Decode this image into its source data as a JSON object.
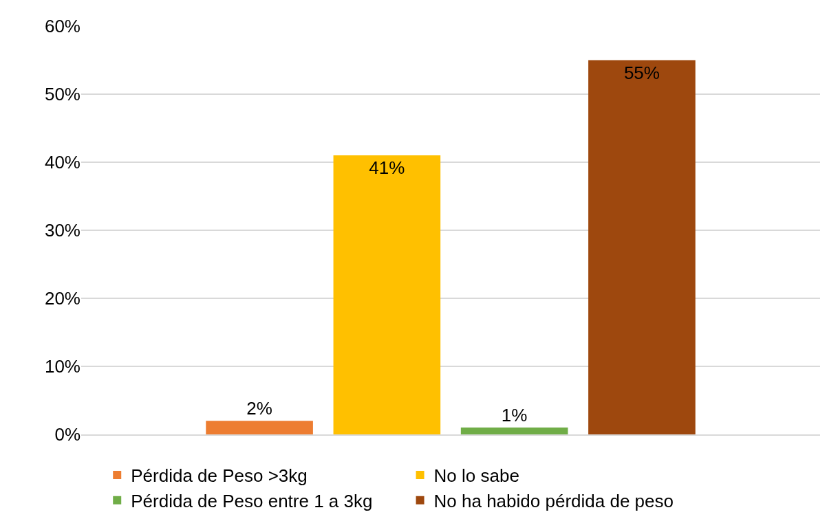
{
  "chart_data": {
    "type": "bar",
    "categories": [
      null
    ],
    "series": [
      {
        "name": "Pérdida de Peso >3kg",
        "color": "#ed7d31",
        "values": [
          2
        ],
        "value_labels": [
          "2%"
        ]
      },
      {
        "name": "No lo sabe",
        "color": "#ffc000",
        "values": [
          41
        ],
        "value_labels": [
          "41%"
        ]
      },
      {
        "name": "Pérdida de Peso entre 1 a 3kg",
        "color": "#70ad47",
        "values": [
          1
        ],
        "value_labels": [
          "1%"
        ]
      },
      {
        "name": "No ha habido pérdida de peso",
        "color": "#9e480e",
        "values": [
          55
        ],
        "value_labels": [
          "55%"
        ]
      }
    ],
    "ylim": [
      0,
      60
    ],
    "yticks": [
      {
        "value": 0,
        "label": "0%"
      },
      {
        "value": 10,
        "label": "10%"
      },
      {
        "value": 20,
        "label": "20%"
      },
      {
        "value": 30,
        "label": "30%"
      },
      {
        "value": 40,
        "label": "40%"
      },
      {
        "value": 50,
        "label": "50%"
      },
      {
        "value": 60,
        "label": "60%"
      }
    ],
    "grid": "y",
    "legend": "bottom"
  }
}
